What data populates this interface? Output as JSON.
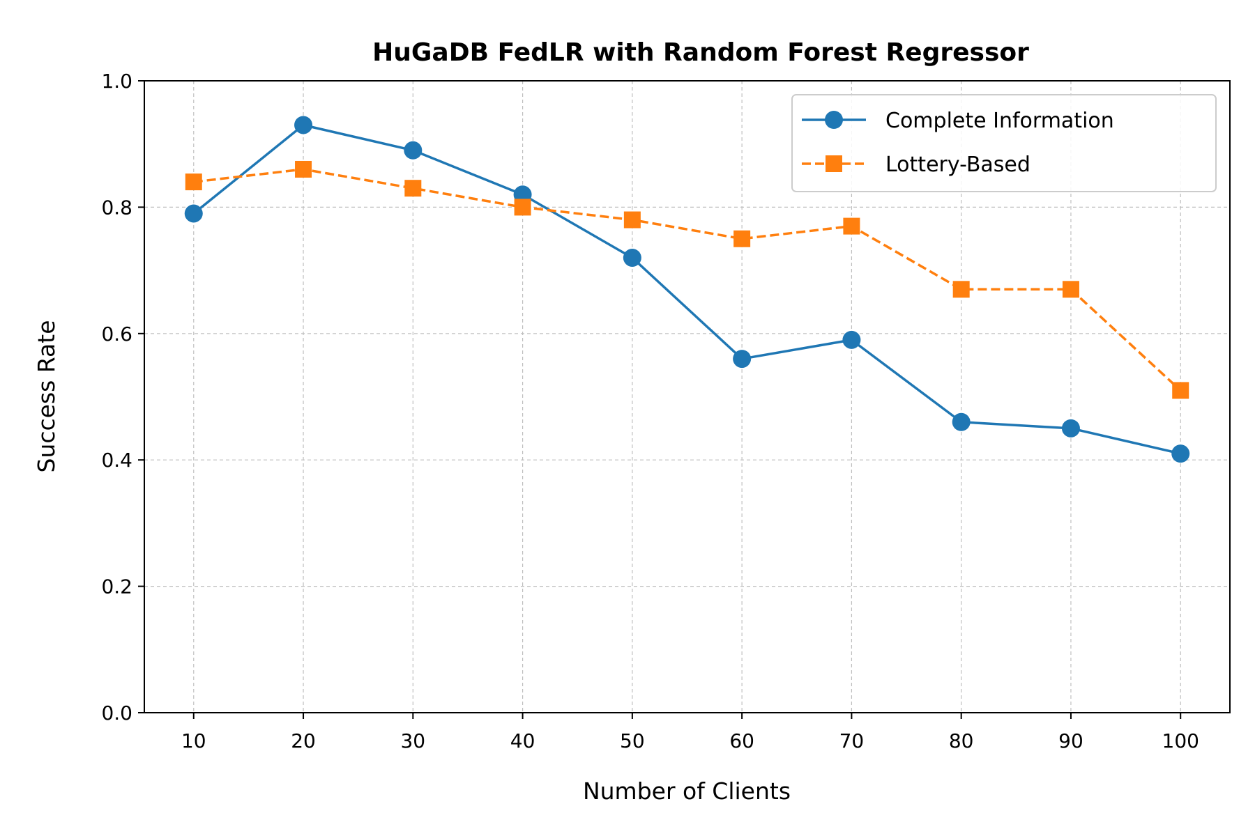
{
  "chart_data": {
    "type": "line",
    "title": "HuGaDB FedLR with Random Forest Regressor",
    "xlabel": "Number of Clients",
    "ylabel": "Success Rate",
    "x": [
      10,
      20,
      30,
      40,
      50,
      60,
      70,
      80,
      90,
      100
    ],
    "xticks": [
      "10",
      "20",
      "30",
      "40",
      "50",
      "60",
      "70",
      "80",
      "90",
      "100"
    ],
    "yticks": [
      "0.0",
      "0.2",
      "0.4",
      "0.6",
      "0.8",
      "1.0"
    ],
    "xlim": [
      5.5,
      104.5
    ],
    "ylim": [
      0,
      1.0
    ],
    "grid": true,
    "legend_position": "top-right",
    "series": [
      {
        "name": "Complete Information",
        "values": [
          0.79,
          0.93,
          0.89,
          0.82,
          0.72,
          0.56,
          0.59,
          0.46,
          0.45,
          0.41
        ],
        "color": "#1f77b4",
        "marker": "circle",
        "line_style": "solid"
      },
      {
        "name": "Lottery-Based",
        "values": [
          0.84,
          0.86,
          0.83,
          0.8,
          0.78,
          0.75,
          0.77,
          0.67,
          0.67,
          0.51
        ],
        "color": "#ff7f0e",
        "marker": "square",
        "line_style": "dashed"
      }
    ]
  }
}
